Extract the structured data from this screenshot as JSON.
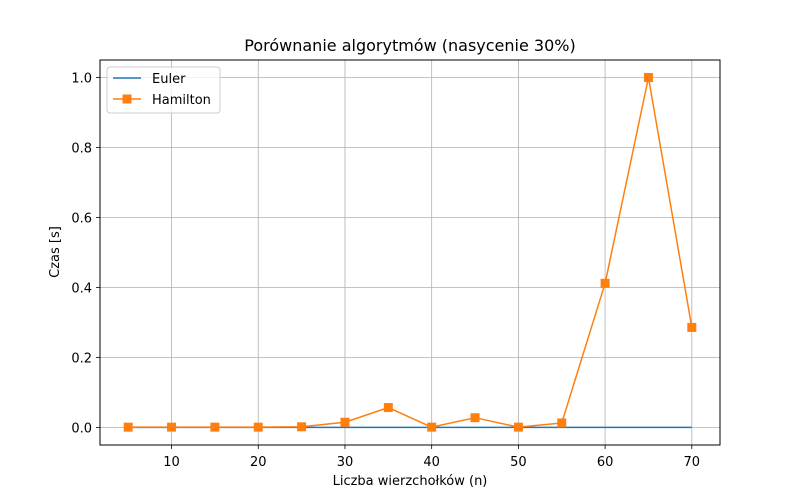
{
  "chart_data": {
    "type": "line",
    "title": "Porównanie algorytmów (nasycenie 30%)",
    "xlabel": "Liczba wierzchołków (n)",
    "ylabel": "Czas [s]",
    "x": [
      5,
      10,
      15,
      20,
      25,
      30,
      35,
      40,
      45,
      50,
      55,
      60,
      65,
      70
    ],
    "xlim": [
      1.75,
      73.25
    ],
    "ylim": [
      -0.05,
      1.05
    ],
    "xticks": [
      10,
      20,
      30,
      40,
      50,
      60,
      70
    ],
    "yticks": [
      0.0,
      0.2,
      0.4,
      0.6,
      0.8,
      1.0
    ],
    "xtick_labels": [
      "10",
      "20",
      "30",
      "40",
      "50",
      "60",
      "70"
    ],
    "ytick_labels": [
      "0.0",
      "0.2",
      "0.4",
      "0.6",
      "0.8",
      "1.0"
    ],
    "grid": true,
    "legend_position": "upper-left",
    "series": [
      {
        "name": "Euler",
        "color": "#1f77b4",
        "marker": "none",
        "values": [
          0.0005,
          0.0005,
          0.0005,
          0.0005,
          0.0005,
          0.0005,
          0.0005,
          0.0005,
          0.0005,
          0.0005,
          0.0005,
          0.0005,
          0.0005,
          0.0005
        ]
      },
      {
        "name": "Hamilton",
        "color": "#ff7f0e",
        "marker": "square",
        "values": [
          0.001,
          0.001,
          0.001,
          0.001,
          0.002,
          0.015,
          0.057,
          0.001,
          0.028,
          0.001,
          0.013,
          0.412,
          1.0,
          0.286
        ]
      }
    ]
  }
}
